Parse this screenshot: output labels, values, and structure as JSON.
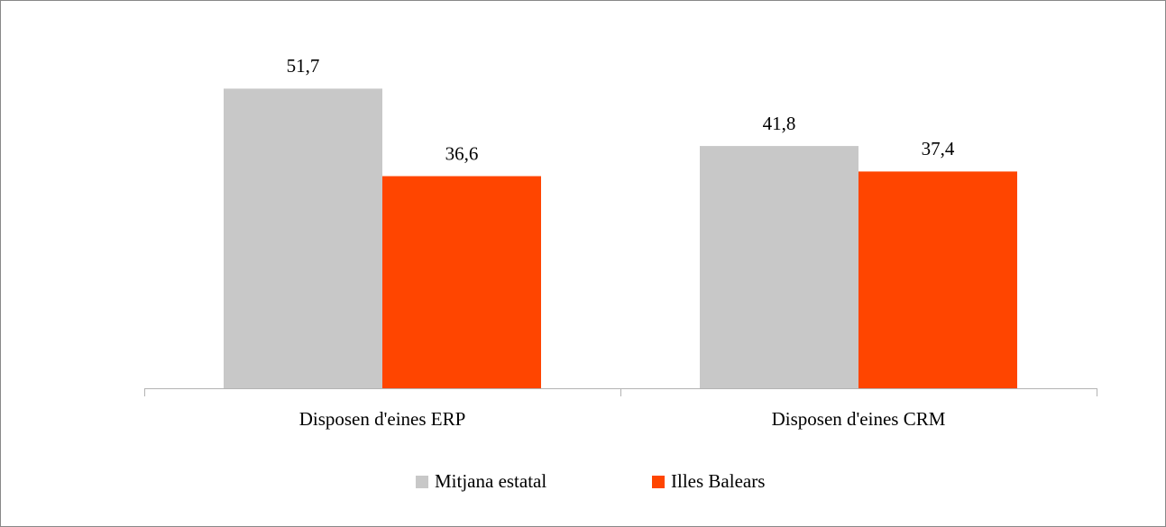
{
  "chart_data": {
    "type": "bar",
    "categories": [
      "Disposen d'eines ERP",
      "Disposen d'eines CRM"
    ],
    "series": [
      {
        "name": "Mitjana estatal",
        "color": "#c8c8c8",
        "values": [
          51.7,
          41.8
        ],
        "value_labels": [
          "51,7",
          "41,8"
        ]
      },
      {
        "name": "Illes Balears",
        "color": "#ff4500",
        "values": [
          36.6,
          37.4
        ],
        "value_labels": [
          "36,6",
          "37,4"
        ]
      }
    ],
    "ylim": [
      0,
      60
    ]
  }
}
